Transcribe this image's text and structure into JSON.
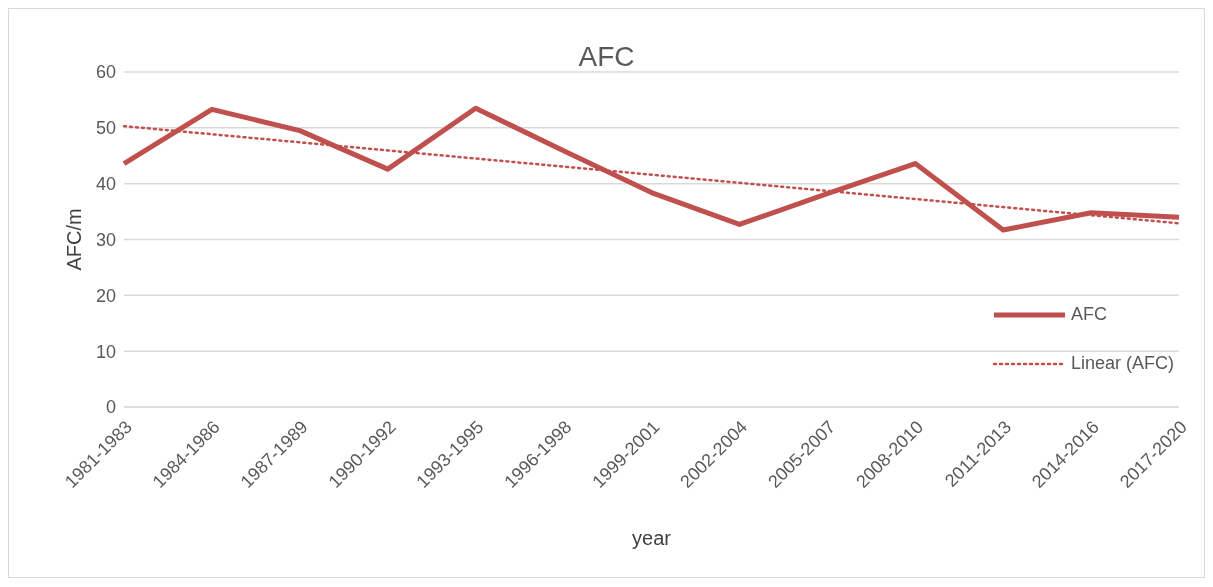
{
  "chart_data": {
    "type": "line",
    "title": "AFC",
    "xlabel": "year",
    "ylabel": "AFC/m",
    "categories": [
      "1981-1983",
      "1984-1986",
      "1987-1989",
      "1990-1992",
      "1993-1995",
      "1996-1998",
      "1999-2001",
      "2002-2004",
      "2005-2007",
      "2008-2010",
      "2011-2013",
      "2014-2016",
      "2017-2020"
    ],
    "series": [
      {
        "name": "AFC",
        "color": "#c0504d",
        "line_style": "solid",
        "values": [
          43.6,
          53.3,
          49.5,
          42.6,
          53.5,
          45.9,
          38.4,
          32.7,
          38.2,
          43.6,
          31.7,
          34.8,
          34.0
        ]
      },
      {
        "name": "Linear (AFC)",
        "type": "line",
        "color": "#c0504d",
        "line_style": "dotted",
        "values": [
          50.3,
          48.85,
          47.4,
          45.95,
          44.5,
          43.05,
          41.6,
          40.15,
          38.7,
          37.25,
          35.8,
          34.35,
          32.9
        ]
      }
    ],
    "ylim": [
      0,
      60
    ],
    "yticks": [
      0,
      10,
      20,
      30,
      40,
      50,
      60
    ],
    "grid": "y",
    "legend": "bottom right",
    "marker": "none"
  }
}
